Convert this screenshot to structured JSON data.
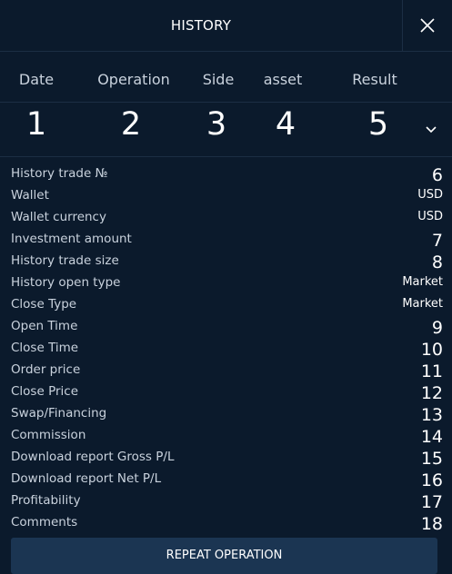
{
  "header": {
    "title": "HISTORY",
    "close_icon": "close-icon"
  },
  "columns": [
    "Date",
    "Operation",
    "Side",
    "asset",
    "Result"
  ],
  "summary_values": [
    "1",
    "2",
    "3",
    "4",
    "5"
  ],
  "expand_icon": "chevron-down-icon",
  "details": [
    {
      "label": "History trade №",
      "value": "6"
    },
    {
      "label": "Wallet",
      "value": "USD"
    },
    {
      "label": "Wallet currency",
      "value": "USD"
    },
    {
      "label": "Investment amount",
      "value": "7"
    },
    {
      "label": "History trade size",
      "value": "8"
    },
    {
      "label": "History open type",
      "value": "Market"
    },
    {
      "label": "Close Type",
      "value": "Market"
    },
    {
      "label": "Open Time",
      "value": "9"
    },
    {
      "label": "Close Time",
      "value": "10"
    },
    {
      "label": "Order price",
      "value": "11"
    },
    {
      "label": "Close Price",
      "value": "12"
    },
    {
      "label": "Swap/Financing",
      "value": "13"
    },
    {
      "label": "Commission",
      "value": "14"
    },
    {
      "label": "Download report Gross P/L",
      "value": "15"
    },
    {
      "label": "Download report Net P/L",
      "value": "16"
    },
    {
      "label": "Profitability",
      "value": "17"
    },
    {
      "label": "Comments",
      "value": "18"
    }
  ],
  "footer": {
    "repeat_label": "REPEAT OPERATION"
  },
  "colors": {
    "background": "#0b1a2c",
    "divider": "#1c2e44",
    "button": "#1b3552",
    "label_text": "#c9d2dd",
    "value_text": "#ffffff"
  }
}
